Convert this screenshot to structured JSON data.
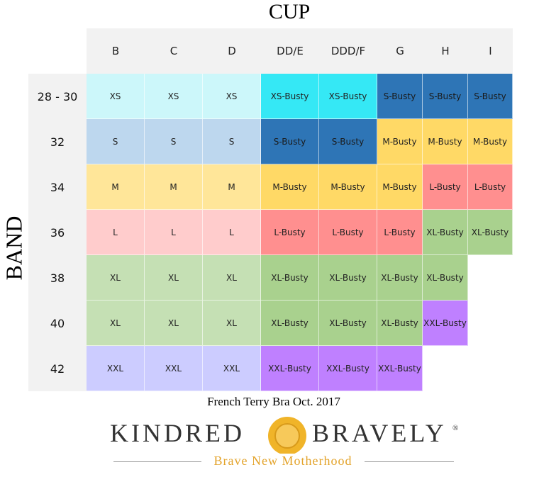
{
  "header": {
    "title": "CUP",
    "row_title": "BAND"
  },
  "table": {
    "columns": [
      "B",
      "C",
      "D",
      "DD/E",
      "DDD/F",
      "G",
      "H",
      "I"
    ],
    "rows": [
      {
        "band": "28 - 30",
        "cells": [
          {
            "text": "XS",
            "color": "#ccf7fa"
          },
          {
            "text": "XS",
            "color": "#ccf7fa"
          },
          {
            "text": "XS",
            "color": "#ccf7fa"
          },
          {
            "text": "XS-Busty",
            "color": "#35e8f5"
          },
          {
            "text": "XS-Busty",
            "color": "#35e8f5"
          },
          {
            "text": "S-Busty",
            "color": "#2e75b6"
          },
          {
            "text": "S-Busty",
            "color": "#2e75b6"
          },
          {
            "text": "S-Busty",
            "color": "#2e75b6"
          }
        ]
      },
      {
        "band": "32",
        "cells": [
          {
            "text": "S",
            "color": "#bdd7ee"
          },
          {
            "text": "S",
            "color": "#bdd7ee"
          },
          {
            "text": "S",
            "color": "#bdd7ee"
          },
          {
            "text": "S-Busty",
            "color": "#2e75b6"
          },
          {
            "text": "S-Busty",
            "color": "#2e75b6"
          },
          {
            "text": "M-Busty",
            "color": "#ffd966"
          },
          {
            "text": "M-Busty",
            "color": "#ffd966"
          },
          {
            "text": "M-Busty",
            "color": "#ffd966"
          }
        ]
      },
      {
        "band": "34",
        "cells": [
          {
            "text": "M",
            "color": "#ffe699"
          },
          {
            "text": "M",
            "color": "#ffe699"
          },
          {
            "text": "M",
            "color": "#ffe699"
          },
          {
            "text": "M-Busty",
            "color": "#ffd966"
          },
          {
            "text": "M-Busty",
            "color": "#ffd966"
          },
          {
            "text": "M-Busty",
            "color": "#ffd966"
          },
          {
            "text": "L-Busty",
            "color": "#ff8f8f"
          },
          {
            "text": "L-Busty",
            "color": "#ff8f8f"
          }
        ]
      },
      {
        "band": "36",
        "cells": [
          {
            "text": "L",
            "color": "#ffcccc"
          },
          {
            "text": "L",
            "color": "#ffcccc"
          },
          {
            "text": "L",
            "color": "#ffcccc"
          },
          {
            "text": "L-Busty",
            "color": "#ff8f8f"
          },
          {
            "text": "L-Busty",
            "color": "#ff8f8f"
          },
          {
            "text": "L-Busty",
            "color": "#ff8f8f"
          },
          {
            "text": "XL-Busty",
            "color": "#a9d18e"
          },
          {
            "text": "XL-Busty",
            "color": "#a9d18e"
          }
        ]
      },
      {
        "band": "38",
        "cells": [
          {
            "text": "XL",
            "color": "#c5e0b4"
          },
          {
            "text": "XL",
            "color": "#c5e0b4"
          },
          {
            "text": "XL",
            "color": "#c5e0b4"
          },
          {
            "text": "XL-Busty",
            "color": "#a9d18e"
          },
          {
            "text": "XL-Busty",
            "color": "#a9d18e"
          },
          {
            "text": "XL-Busty",
            "color": "#a9d18e"
          },
          {
            "text": "XL-Busty",
            "color": "#a9d18e"
          }
        ]
      },
      {
        "band": "40",
        "cells": [
          {
            "text": "XL",
            "color": "#c5e0b4"
          },
          {
            "text": "XL",
            "color": "#c5e0b4"
          },
          {
            "text": "XL",
            "color": "#c5e0b4"
          },
          {
            "text": "XL-Busty",
            "color": "#a9d18e"
          },
          {
            "text": "XL-Busty",
            "color": "#a9d18e"
          },
          {
            "text": "XL-Busty",
            "color": "#a9d18e"
          },
          {
            "text": "XXL-Busty",
            "color": "#bf80ff"
          }
        ]
      },
      {
        "band": "42",
        "cells": [
          {
            "text": "XXL",
            "color": "#ccccff"
          },
          {
            "text": "XXL",
            "color": "#ccccff"
          },
          {
            "text": "XXL",
            "color": "#ccccff"
          },
          {
            "text": "XXL-Busty",
            "color": "#bf80ff"
          },
          {
            "text": "XXL-Busty",
            "color": "#bf80ff"
          },
          {
            "text": "XXL-Busty",
            "color": "#bf80ff"
          }
        ]
      }
    ]
  },
  "footer": {
    "caption": "French Terry Bra Oct. 2017",
    "brand_left": "KINDRED",
    "brand_right": "BRAVELY",
    "registered": "®",
    "tagline": "Brave New Motherhood"
  }
}
